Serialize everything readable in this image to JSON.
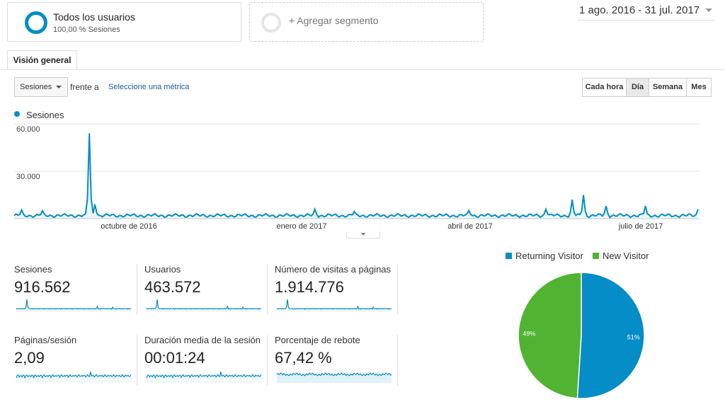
{
  "segment": {
    "title": "Todos los usuarios",
    "subtitle": "100,00 % Sesiones"
  },
  "add_segment": {
    "label": "+ Agregar segmento"
  },
  "date_range": "1 ago. 2016 - 31 jul. 2017",
  "tabs": [
    {
      "label": "Visión general"
    }
  ],
  "controls": {
    "metric_select": "Sesiones",
    "versus_text": "frente a",
    "pick_metric": "Seleccione una métrica",
    "granularity": [
      {
        "label": "Cada hora",
        "active": false
      },
      {
        "label": "Día",
        "active": true
      },
      {
        "label": "Semana",
        "active": false
      },
      {
        "label": "Mes",
        "active": false
      }
    ]
  },
  "chart_data": [
    {
      "type": "line",
      "series": [
        {
          "name": "Sesiones",
          "color": "#058dc7"
        }
      ],
      "yticks": [
        "60.000",
        "30.000"
      ],
      "ylim": [
        0,
        60000
      ],
      "xticks": [
        "octubre de 2016",
        "enero de 2017",
        "abril de 2017",
        "julio de 2017"
      ],
      "x_start": "2016-08-01",
      "x_end": "2017-07-31",
      "grid": true,
      "peaks": [
        {
          "date": "2016-08-05",
          "value": 5500
        },
        {
          "date": "2016-08-16",
          "value": 5000
        },
        {
          "date": "2016-09-10",
          "value": 54000
        },
        {
          "date": "2016-09-13",
          "value": 9000
        },
        {
          "date": "2017-01-08",
          "value": 6000
        },
        {
          "date": "2017-01-29",
          "value": 4500
        },
        {
          "date": "2017-03-31",
          "value": 5200
        },
        {
          "date": "2017-05-11",
          "value": 6000
        },
        {
          "date": "2017-05-25",
          "value": 12000
        },
        {
          "date": "2017-05-31",
          "value": 15000
        },
        {
          "date": "2017-06-12",
          "value": 8000
        },
        {
          "date": "2017-07-03",
          "value": 8000
        },
        {
          "date": "2017-07-31",
          "value": 6000
        }
      ],
      "baseline": 2000
    },
    {
      "type": "pie",
      "slices": [
        {
          "label": "Returning Visitor",
          "value": 51,
          "display": "51%",
          "color": "#058dc7"
        },
        {
          "label": "New Visitor",
          "value": 49,
          "display": "49%",
          "color": "#50b432"
        }
      ]
    }
  ],
  "metrics": [
    {
      "label": "Sesiones",
      "value": "916.562",
      "spark": "spike"
    },
    {
      "label": "Usuarios",
      "value": "463.572",
      "spark": "spike"
    },
    {
      "label": "Número de visitas a páginas",
      "value": "1.914.776",
      "spark": "spike"
    },
    {
      "label": "Páginas/sesión",
      "value": "2,09",
      "spark": "noisy"
    },
    {
      "label": "Duración media de la sesión",
      "value": "00:01:24",
      "spark": "noisy"
    },
    {
      "label": "Porcentaje de rebote",
      "value": "67,42 %",
      "spark": "flat"
    }
  ]
}
